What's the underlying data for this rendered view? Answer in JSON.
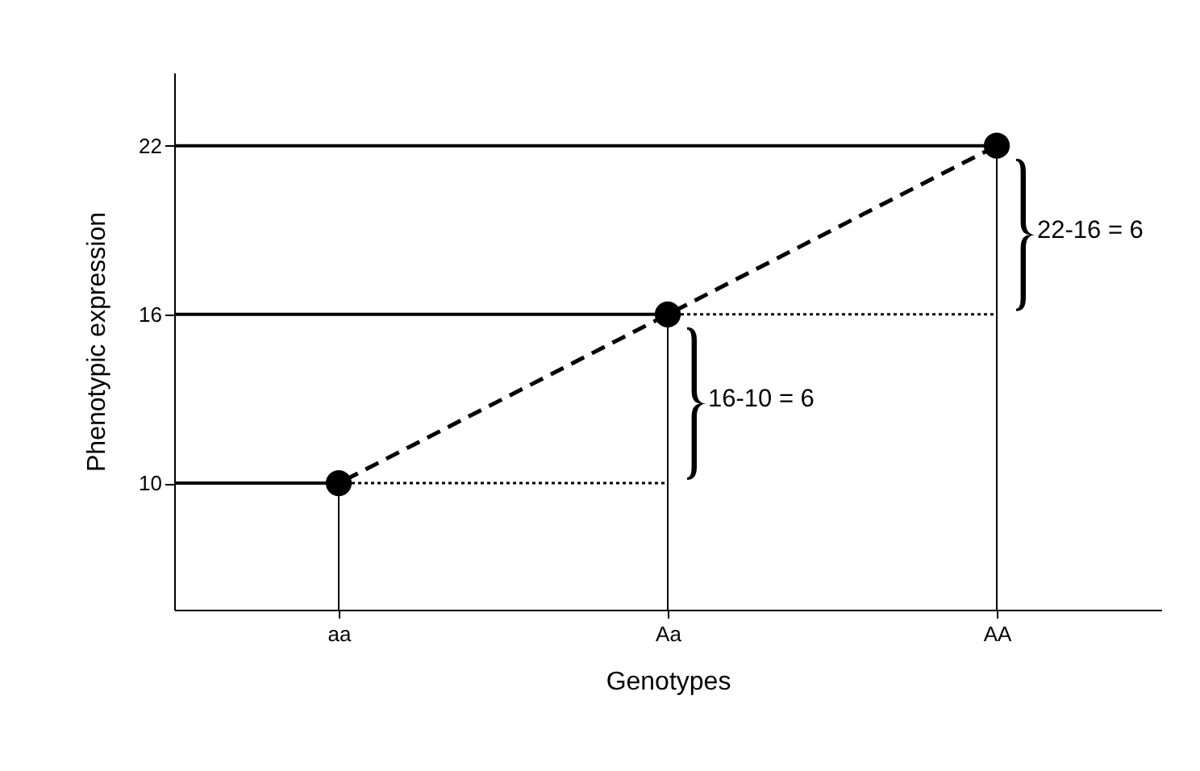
{
  "chart_data": {
    "type": "lollipop",
    "xlabel": "Genotypes",
    "ylabel": "Phenotypic expression",
    "categories": [
      "aa",
      "Aa",
      "AA"
    ],
    "ylim": [
      5.5,
      24.6
    ],
    "yticks": [
      10,
      16,
      22
    ],
    "grid": false,
    "series": [
      {
        "type": "lollipop",
        "color": "#000000",
        "marker": "circle",
        "values": [
          10,
          16,
          22
        ]
      },
      {
        "type": "line",
        "color": "#000000",
        "line_style": "dashed",
        "marker": "none",
        "x": [
          "aa",
          "Aa",
          "AA"
        ],
        "values": [
          10,
          16,
          22
        ]
      },
      {
        "type": "line",
        "color": "#000000",
        "line_style": "dotted",
        "marker": "none",
        "x": [
          "aa",
          "Aa"
        ],
        "values": [
          10,
          10
        ]
      },
      {
        "type": "line",
        "color": "#000000",
        "line_style": "dotted",
        "marker": "none",
        "x": [
          "Aa",
          "AA"
        ],
        "values": [
          16,
          16
        ]
      }
    ],
    "ref_lines": [
      {
        "axis": "y",
        "value": 10,
        "label": null
      },
      {
        "axis": "y",
        "value": 16,
        "label": null
      },
      {
        "axis": "y",
        "value": 22,
        "label": null
      }
    ],
    "annotations": [
      "16-10 = 6",
      "22-16 = 6"
    ]
  }
}
